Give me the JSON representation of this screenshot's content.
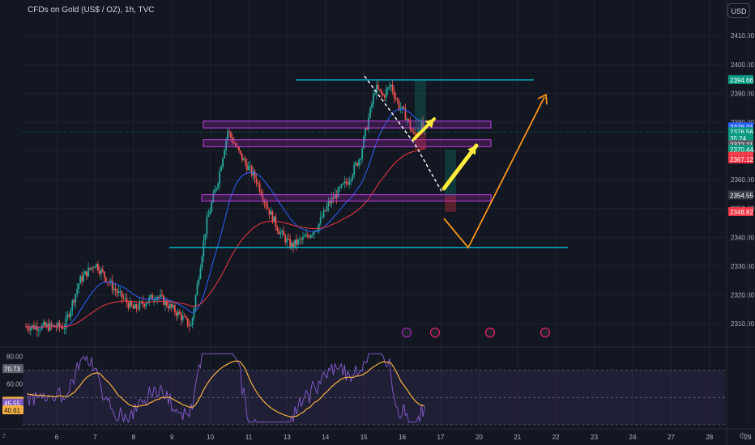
{
  "header": {
    "title": "CFDs on Gold (US$ / OZ), 1h, TVC",
    "currency": "USD"
  },
  "colors": {
    "background": "#131722",
    "candle_up": "#26a69a",
    "candle_down": "#ef5350",
    "ema_fast": "#2962ff",
    "ema_slow": "#f23645",
    "level_line": "#00bcd4",
    "zone": "#9c27b0",
    "arrow_yellow": "#ffeb3b",
    "arrow_orange": "#f7931a",
    "rsi_line": "#7e57c2",
    "rsi_ma": "#f5b041"
  },
  "chart_data": [
    {
      "type": "candlestick",
      "ylim": [
        2303,
        2414
      ],
      "y_ticks": [
        2310,
        2320,
        2330,
        2340,
        2350,
        2360,
        2370,
        2380,
        2390,
        2400,
        2410
      ],
      "x_ticks": [
        "6",
        "7",
        "8",
        "9",
        "10",
        "11",
        "13",
        "14",
        "15",
        "16",
        "17",
        "20",
        "21",
        "22",
        "23",
        "24",
        "27",
        "28",
        "29"
      ],
      "price_labels": [
        {
          "text": "2394.66",
          "value": 2394.66,
          "color": "#089981"
        },
        {
          "text": "2378.21",
          "value": 2378.21,
          "color": "#2962ff"
        },
        {
          "text": "2376.56",
          "value": 2376.56,
          "color": "#089981"
        },
        {
          "text": "35:24",
          "value": 2374.4,
          "color": "#089981"
        },
        {
          "text": "2372.11",
          "value": 2372.11,
          "color": "#5d606b"
        },
        {
          "text": "2370.44",
          "value": 2370.44,
          "color": "#089981"
        },
        {
          "text": "2368.03",
          "value": 2368.03,
          "color": "#f23645"
        },
        {
          "text": "2367.12",
          "value": 2367.12,
          "color": "#f23645"
        },
        {
          "text": "2354.55",
          "value": 2354.55,
          "color": "#363a45"
        },
        {
          "text": "2348.82",
          "value": 2348.82,
          "color": "#f23645"
        }
      ],
      "levels": [
        2394.66,
        2336.5
      ],
      "zones": [
        {
          "low": 2378.0,
          "high": 2380.4
        },
        {
          "low": 2371.5,
          "high": 2373.9
        },
        {
          "low": 2352.6,
          "high": 2354.8
        }
      ],
      "path_nodes": [
        {
          "x": 6.2,
          "y": 2309
        },
        {
          "x": 6.6,
          "y": 2325
        },
        {
          "x": 7.0,
          "y": 2331
        },
        {
          "x": 7.5,
          "y": 2322
        },
        {
          "x": 8.0,
          "y": 2315
        },
        {
          "x": 8.6,
          "y": 2320
        },
        {
          "x": 9.2,
          "y": 2313
        },
        {
          "x": 9.5,
          "y": 2309
        },
        {
          "x": 9.9,
          "y": 2345
        },
        {
          "x": 10.2,
          "y": 2360
        },
        {
          "x": 10.45,
          "y": 2377
        },
        {
          "x": 10.8,
          "y": 2368
        },
        {
          "x": 11.2,
          "y": 2360
        },
        {
          "x": 11.5,
          "y": 2350
        },
        {
          "x": 11.8,
          "y": 2342
        },
        {
          "x": 12.1,
          "y": 2337
        },
        {
          "x": 12.5,
          "y": 2340
        },
        {
          "x": 12.8,
          "y": 2344
        },
        {
          "x": 13.1,
          "y": 2352
        },
        {
          "x": 13.6,
          "y": 2360
        },
        {
          "x": 13.9,
          "y": 2368
        },
        {
          "x": 14.1,
          "y": 2380
        },
        {
          "x": 14.3,
          "y": 2392
        },
        {
          "x": 14.5,
          "y": 2389
        },
        {
          "x": 14.7,
          "y": 2393
        },
        {
          "x": 14.9,
          "y": 2386
        },
        {
          "x": 15.1,
          "y": 2382
        },
        {
          "x": 15.3,
          "y": 2375
        },
        {
          "x": 15.5,
          "y": 2379
        },
        {
          "x": 15.6,
          "y": 2376
        }
      ],
      "rsi": {
        "ylim": [
          30,
          85
        ],
        "y_ticks": [
          80.0,
          60.0,
          40.0
        ],
        "labels": [
          {
            "text": "70.73",
            "value": 70.73
          },
          {
            "text": "46.90",
            "value": 46.9
          },
          {
            "text": "45.55",
            "value": 45.55
          },
          {
            "text": "40.61",
            "value": 40.61
          }
        ],
        "band": [
          30,
          70
        ]
      }
    }
  ]
}
